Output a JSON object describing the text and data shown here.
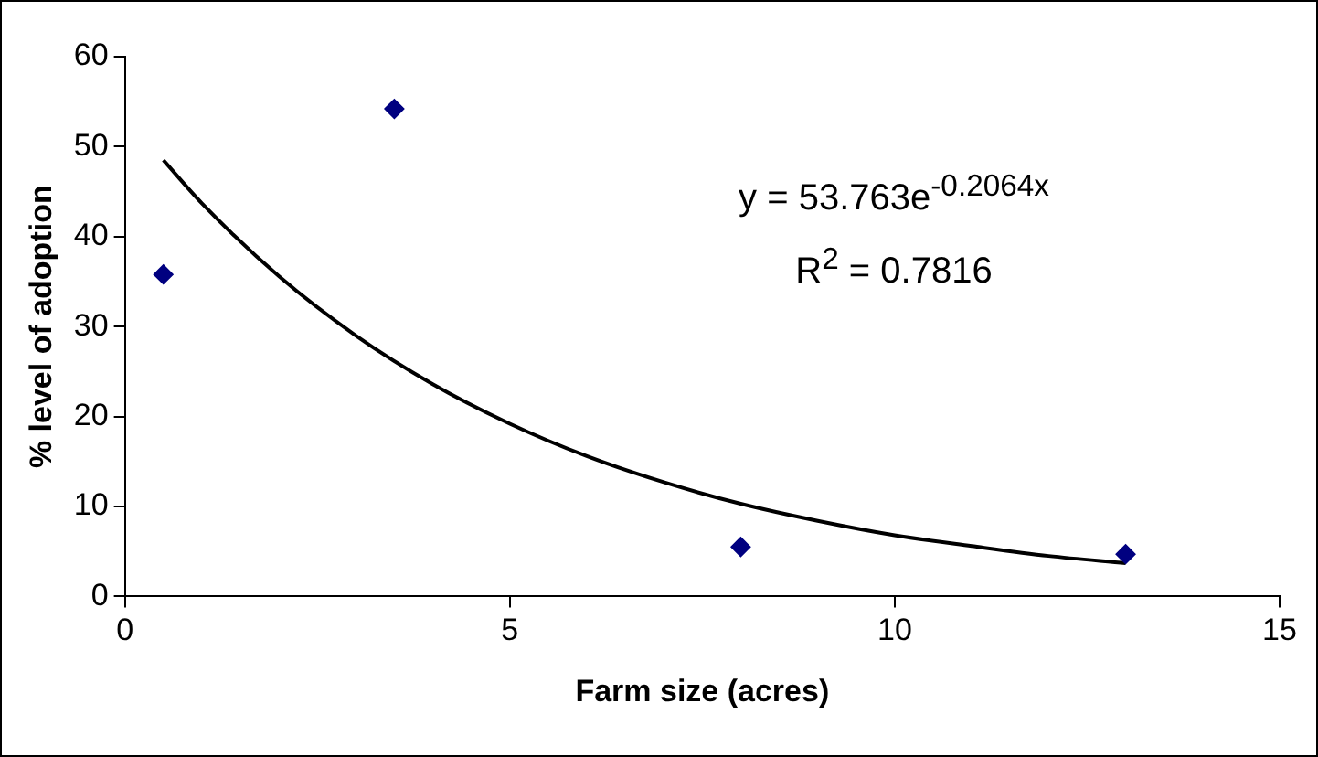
{
  "chart_data": {
    "type": "scatter",
    "xlabel": "Farm size (acres)",
    "ylabel": "% level of adoption",
    "xlim": [
      0,
      15
    ],
    "xticks": [
      0,
      5,
      10,
      15
    ],
    "ylim": [
      0,
      60
    ],
    "yticks": [
      0,
      10,
      20,
      30,
      40,
      50,
      60
    ],
    "grid": false,
    "legend": false,
    "series": [
      {
        "color": "#000080",
        "marker": "diamond",
        "x": [
          0.5,
          3.5,
          8,
          13
        ],
        "values": [
          35.8,
          54.2,
          5.5,
          4.7
        ]
      },
      {
        "type": "line",
        "color": "#000000",
        "line_style": "solid",
        "marker": "none",
        "x": [
          0.5,
          1,
          2,
          3,
          4,
          5,
          6,
          7,
          8,
          9,
          10,
          11,
          12,
          13
        ],
        "values": [
          48.5,
          43.7,
          35.6,
          29.0,
          23.6,
          19.2,
          15.6,
          12.7,
          10.3,
          8.4,
          6.8,
          5.6,
          4.5,
          3.7
        ]
      }
    ],
    "annotations": [
      "y = 53.763e$^{-0.2064x}$",
      "R$^{2}$ = 0.7816"
    ]
  }
}
